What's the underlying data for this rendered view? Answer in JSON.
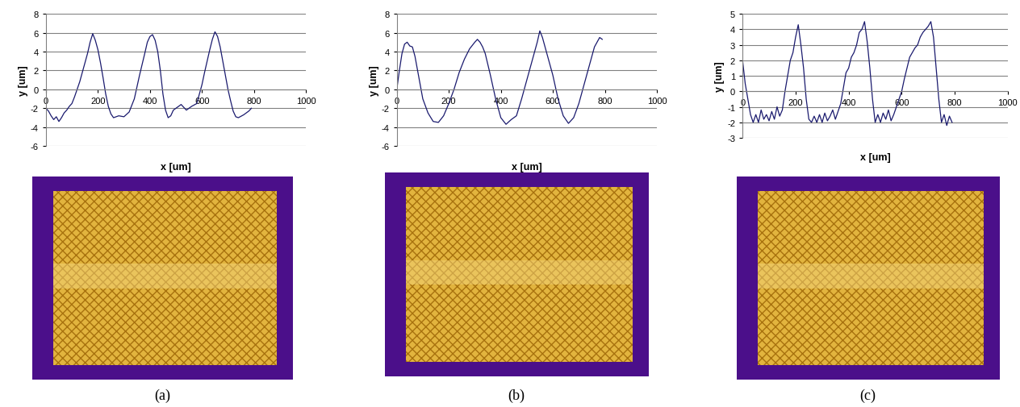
{
  "chart_data": [
    {
      "type": "line",
      "caption": "(a)",
      "x_label": "x [um]",
      "y_label": "y [um]",
      "xlim": [
        0,
        1000
      ],
      "xticks": [
        0,
        200,
        400,
        600,
        800,
        1000
      ],
      "ylim": [
        -6,
        8
      ],
      "yticks": [
        -6,
        -4,
        -2,
        0,
        2,
        4,
        6,
        8
      ],
      "grid": true,
      "color": "#1a1a6e",
      "x": [
        0,
        10,
        20,
        30,
        40,
        50,
        60,
        70,
        80,
        90,
        100,
        110,
        120,
        130,
        140,
        150,
        160,
        170,
        180,
        190,
        200,
        210,
        220,
        230,
        240,
        250,
        260,
        280,
        300,
        320,
        340,
        360,
        380,
        390,
        400,
        410,
        420,
        430,
        440,
        450,
        460,
        470,
        480,
        490,
        500,
        520,
        540,
        560,
        580,
        600,
        610,
        620,
        630,
        640,
        650,
        660,
        670,
        680,
        690,
        700,
        710,
        720,
        730,
        740,
        760,
        780,
        790
      ],
      "values": [
        -2.0,
        -2.3,
        -2.8,
        -3.2,
        -2.9,
        -3.4,
        -3.0,
        -2.5,
        -2.2,
        -1.8,
        -1.5,
        -0.8,
        0.0,
        0.8,
        1.8,
        2.8,
        3.8,
        5.0,
        5.9,
        5.2,
        4.2,
        2.8,
        1.2,
        -0.5,
        -1.8,
        -2.6,
        -3.0,
        -2.8,
        -2.9,
        -2.4,
        -1.0,
        1.5,
        3.8,
        5.0,
        5.6,
        5.8,
        5.2,
        4.0,
        2.0,
        -0.5,
        -2.2,
        -3.0,
        -2.8,
        -2.2,
        -2.0,
        -1.6,
        -2.2,
        -1.8,
        -1.5,
        0.5,
        1.8,
        3.0,
        4.2,
        5.3,
        6.1,
        5.6,
        4.5,
        3.0,
        1.5,
        0.0,
        -1.2,
        -2.3,
        -2.9,
        -3.0,
        -2.7,
        -2.3,
        -2.0
      ]
    },
    {
      "type": "line",
      "caption": "(b)",
      "x_label": "x [um]",
      "y_label": "y [um]",
      "xlim": [
        0,
        1000
      ],
      "xticks": [
        0,
        200,
        400,
        600,
        800,
        1000
      ],
      "ylim": [
        -6,
        8
      ],
      "yticks": [
        -6,
        -4,
        -2,
        0,
        2,
        4,
        6,
        8
      ],
      "grid": true,
      "color": "#1a1a6e",
      "x": [
        0,
        10,
        20,
        30,
        40,
        50,
        60,
        70,
        80,
        90,
        100,
        120,
        140,
        160,
        180,
        200,
        220,
        240,
        260,
        280,
        300,
        310,
        320,
        330,
        340,
        360,
        380,
        400,
        420,
        440,
        460,
        480,
        500,
        520,
        540,
        550,
        560,
        570,
        580,
        600,
        620,
        640,
        660,
        680,
        700,
        720,
        740,
        760,
        780,
        790
      ],
      "values": [
        0.0,
        2.0,
        3.8,
        4.8,
        5.0,
        4.6,
        4.5,
        3.5,
        2.0,
        0.5,
        -1.0,
        -2.5,
        -3.4,
        -3.5,
        -2.8,
        -1.5,
        0.0,
        1.8,
        3.2,
        4.3,
        5.0,
        5.3,
        5.0,
        4.5,
        3.8,
        1.5,
        -1.0,
        -3.0,
        -3.7,
        -3.2,
        -2.8,
        -1.0,
        1.0,
        3.0,
        5.0,
        6.2,
        5.5,
        4.5,
        3.5,
        1.5,
        -1.0,
        -2.8,
        -3.6,
        -3.0,
        -1.5,
        0.5,
        2.5,
        4.5,
        5.5,
        5.3
      ]
    },
    {
      "type": "line",
      "caption": "(c)",
      "x_label": "x [um]",
      "y_label": "y [um]",
      "xlim": [
        0,
        1000
      ],
      "xticks": [
        0,
        200,
        400,
        600,
        800,
        1000
      ],
      "ylim": [
        -3,
        5
      ],
      "yticks": [
        -3,
        -2,
        -1,
        0,
        1,
        2,
        3,
        4,
        5
      ],
      "grid": true,
      "color": "#1a1a6e",
      "x": [
        0,
        10,
        20,
        30,
        40,
        50,
        60,
        70,
        80,
        90,
        100,
        110,
        120,
        130,
        140,
        150,
        160,
        170,
        180,
        190,
        200,
        210,
        220,
        230,
        240,
        250,
        260,
        270,
        280,
        290,
        300,
        310,
        320,
        330,
        340,
        350,
        360,
        370,
        380,
        390,
        400,
        410,
        420,
        430,
        440,
        450,
        460,
        470,
        480,
        490,
        500,
        510,
        520,
        530,
        540,
        550,
        560,
        570,
        580,
        590,
        600,
        610,
        620,
        630,
        640,
        650,
        660,
        670,
        680,
        690,
        700,
        710,
        720,
        730,
        740,
        750,
        760,
        770,
        780,
        790
      ],
      "values": [
        2.0,
        0.5,
        -0.5,
        -1.5,
        -2.0,
        -1.5,
        -2.0,
        -1.2,
        -1.8,
        -1.5,
        -1.9,
        -1.3,
        -1.8,
        -1.0,
        -1.6,
        -1.2,
        0.0,
        1.0,
        2.0,
        2.5,
        3.5,
        4.3,
        3.0,
        1.5,
        -0.5,
        -1.8,
        -2.0,
        -1.6,
        -2.0,
        -1.5,
        -2.0,
        -1.4,
        -1.9,
        -1.6,
        -1.2,
        -1.8,
        -1.3,
        -0.8,
        0.2,
        1.2,
        1.5,
        2.2,
        2.5,
        3.0,
        3.8,
        4.0,
        4.5,
        3.2,
        1.5,
        -0.5,
        -2.0,
        -1.5,
        -2.0,
        -1.4,
        -1.8,
        -1.2,
        -1.9,
        -1.5,
        -1.0,
        -0.5,
        0.0,
        0.8,
        1.5,
        2.2,
        2.5,
        2.8,
        3.0,
        3.5,
        3.8,
        4.0,
        4.2,
        4.5,
        3.5,
        1.5,
        -0.5,
        -2.0,
        -1.5,
        -2.2,
        -1.6,
        -2.0
      ]
    }
  ]
}
